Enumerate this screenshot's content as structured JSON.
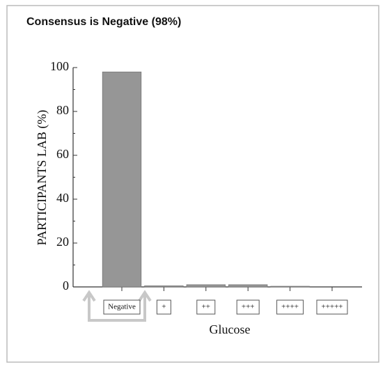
{
  "chart_data": {
    "type": "bar",
    "title": "Consensus is Negative (98%)",
    "ylabel": "PARTICIPANTS LAB (%)",
    "xlabel": "Glucose",
    "categories": [
      "Negative",
      "+",
      "++",
      "+++",
      "++++",
      "+++++"
    ],
    "values": [
      98,
      0.5,
      1,
      1,
      0.3,
      0
    ],
    "color": "#969696",
    "ylim": [
      0,
      100
    ],
    "yticks": [
      0,
      20,
      40,
      60,
      80,
      100
    ]
  }
}
